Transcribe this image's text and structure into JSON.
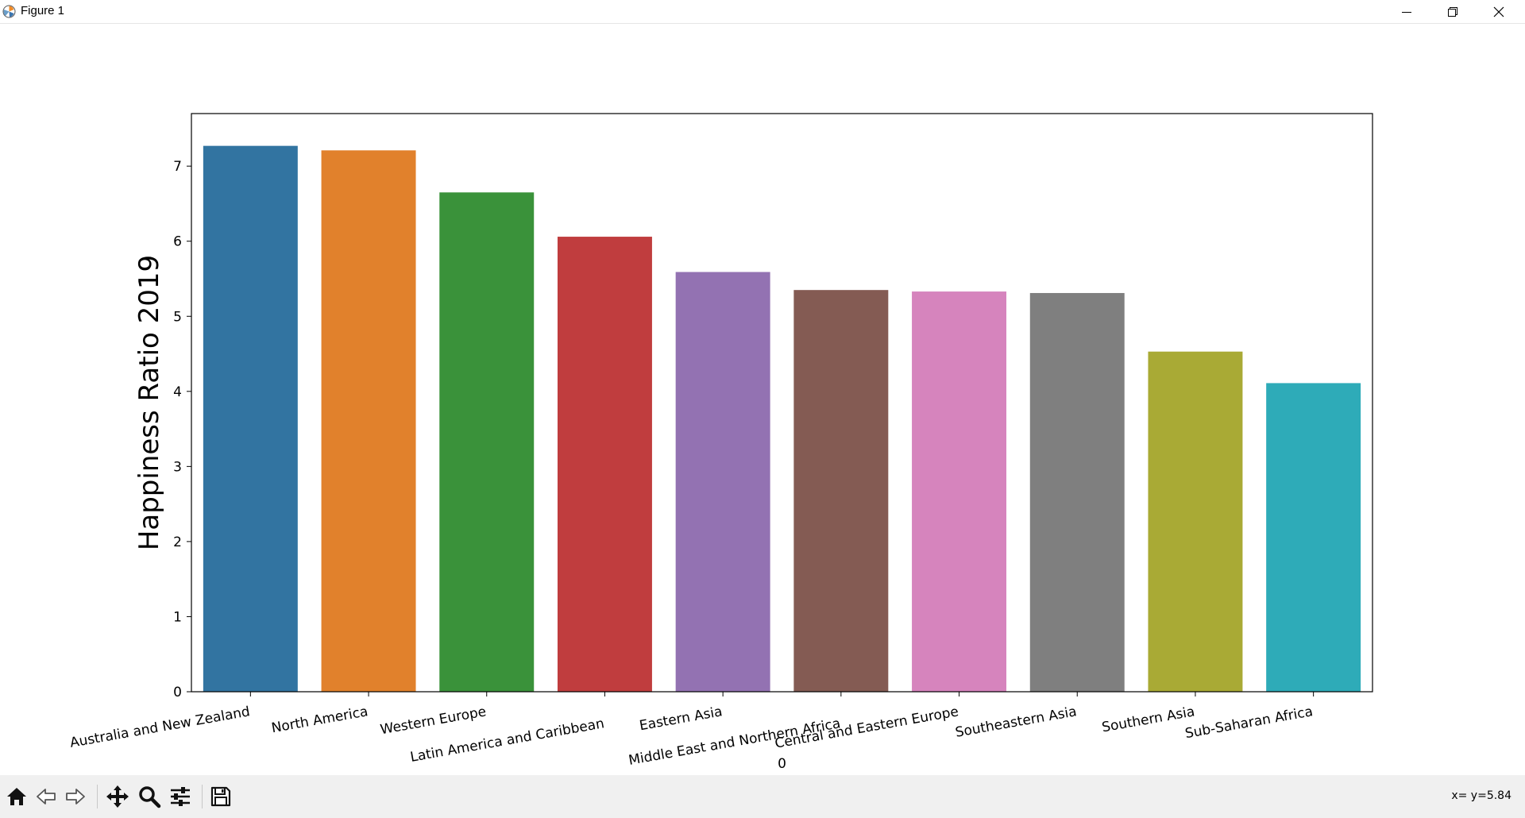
{
  "window": {
    "title": "Figure 1"
  },
  "toolbar": {
    "tools": [
      "home-icon",
      "back-arrow-icon",
      "forward-arrow-icon",
      "pan-icon",
      "zoom-icon",
      "subplots-config-icon",
      "save-icon"
    ],
    "coords_text": "x= y=5.84"
  },
  "chart_data": {
    "type": "bar",
    "title": "",
    "xlabel": "0",
    "ylabel": "Happiness Ratio 2019",
    "ylim": [
      0,
      7.7
    ],
    "yticks": [
      0,
      1,
      2,
      3,
      4,
      5,
      6,
      7
    ],
    "categories": [
      "Australia and New Zealand",
      "North America",
      "Western Europe",
      "Latin America and Caribbean",
      "Eastern Asia",
      "Middle East and Northern Africa",
      "Central and Eastern Europe",
      "Southeastern Asia",
      "Southern Asia",
      "Sub-Saharan Africa"
    ],
    "values": [
      7.27,
      7.21,
      6.65,
      6.06,
      5.59,
      5.35,
      5.33,
      5.31,
      4.53,
      4.11
    ],
    "colors": [
      "#3274a1",
      "#e1812c",
      "#3a923a",
      "#c03d3e",
      "#9372b2",
      "#845b53",
      "#d684bd",
      "#7f7f7f",
      "#a9aa35",
      "#2eabb8"
    ],
    "grid": false,
    "legend": "none"
  }
}
